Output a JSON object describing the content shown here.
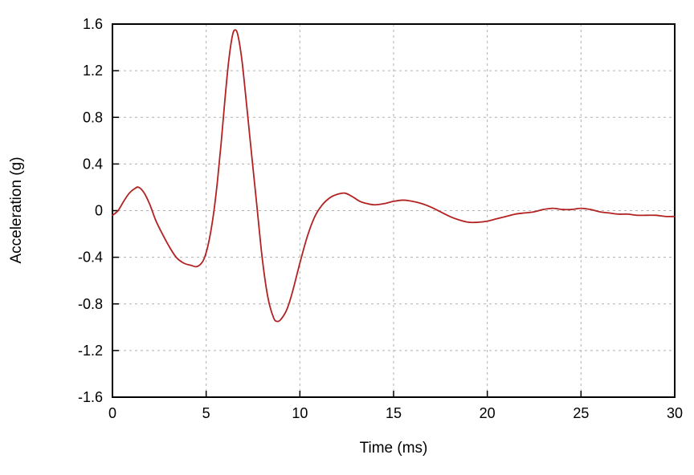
{
  "chart_data": {
    "type": "line",
    "title": "",
    "xlabel": "Time (ms)",
    "ylabel": "Acceleration (g)",
    "xlim": [
      0,
      30
    ],
    "ylim": [
      -1.6,
      1.6
    ],
    "xticks": [
      0,
      5,
      10,
      15,
      20,
      25,
      30
    ],
    "xtick_labels": [
      "0",
      "5",
      "10",
      "15",
      "20",
      "25",
      "30"
    ],
    "yticks": [
      -1.6,
      -1.2,
      -0.8,
      -0.4,
      0,
      0.4,
      0.8,
      1.2,
      1.6
    ],
    "ytick_labels": [
      "-1.6",
      "-1.2",
      "-0.8",
      "-0.4",
      "0",
      "0.4",
      "0.8",
      "1.2",
      "1.6"
    ],
    "grid": "dashed",
    "legend": "none",
    "line_color": "#b22222",
    "grid_color": "#b0b0b0",
    "axis_color": "#000000",
    "series": [
      {
        "name": "acceleration",
        "points": [
          [
            0.0,
            -0.04
          ],
          [
            0.3,
            0.0
          ],
          [
            0.6,
            0.08
          ],
          [
            0.9,
            0.15
          ],
          [
            1.2,
            0.19
          ],
          [
            1.4,
            0.2
          ],
          [
            1.7,
            0.15
          ],
          [
            2.0,
            0.05
          ],
          [
            2.3,
            -0.08
          ],
          [
            2.6,
            -0.18
          ],
          [
            3.0,
            -0.3
          ],
          [
            3.4,
            -0.4
          ],
          [
            3.8,
            -0.45
          ],
          [
            4.2,
            -0.47
          ],
          [
            4.5,
            -0.48
          ],
          [
            4.8,
            -0.44
          ],
          [
            5.0,
            -0.36
          ],
          [
            5.2,
            -0.22
          ],
          [
            5.4,
            -0.02
          ],
          [
            5.6,
            0.25
          ],
          [
            5.8,
            0.58
          ],
          [
            6.0,
            0.95
          ],
          [
            6.2,
            1.28
          ],
          [
            6.4,
            1.5
          ],
          [
            6.55,
            1.55
          ],
          [
            6.7,
            1.5
          ],
          [
            6.9,
            1.3
          ],
          [
            7.1,
            1.0
          ],
          [
            7.4,
            0.52
          ],
          [
            7.7,
            0.05
          ],
          [
            8.0,
            -0.42
          ],
          [
            8.3,
            -0.75
          ],
          [
            8.6,
            -0.92
          ],
          [
            8.8,
            -0.95
          ],
          [
            9.0,
            -0.93
          ],
          [
            9.3,
            -0.85
          ],
          [
            9.6,
            -0.7
          ],
          [
            10.0,
            -0.45
          ],
          [
            10.4,
            -0.22
          ],
          [
            10.8,
            -0.05
          ],
          [
            11.2,
            0.05
          ],
          [
            11.6,
            0.11
          ],
          [
            12.0,
            0.14
          ],
          [
            12.4,
            0.15
          ],
          [
            12.8,
            0.12
          ],
          [
            13.2,
            0.08
          ],
          [
            13.6,
            0.06
          ],
          [
            14.0,
            0.05
          ],
          [
            14.5,
            0.06
          ],
          [
            15.0,
            0.08
          ],
          [
            15.5,
            0.09
          ],
          [
            16.0,
            0.08
          ],
          [
            16.5,
            0.06
          ],
          [
            17.0,
            0.03
          ],
          [
            17.5,
            -0.01
          ],
          [
            18.0,
            -0.05
          ],
          [
            18.5,
            -0.08
          ],
          [
            19.0,
            -0.1
          ],
          [
            19.5,
            -0.1
          ],
          [
            20.0,
            -0.09
          ],
          [
            20.5,
            -0.07
          ],
          [
            21.0,
            -0.05
          ],
          [
            21.5,
            -0.03
          ],
          [
            22.0,
            -0.02
          ],
          [
            22.5,
            -0.01
          ],
          [
            23.0,
            0.01
          ],
          [
            23.5,
            0.02
          ],
          [
            24.0,
            0.01
          ],
          [
            24.5,
            0.01
          ],
          [
            25.0,
            0.02
          ],
          [
            25.5,
            0.01
          ],
          [
            26.0,
            -0.01
          ],
          [
            26.5,
            -0.02
          ],
          [
            27.0,
            -0.03
          ],
          [
            27.5,
            -0.03
          ],
          [
            28.0,
            -0.04
          ],
          [
            28.5,
            -0.04
          ],
          [
            29.0,
            -0.04
          ],
          [
            29.5,
            -0.05
          ],
          [
            30.0,
            -0.05
          ]
        ]
      }
    ]
  }
}
